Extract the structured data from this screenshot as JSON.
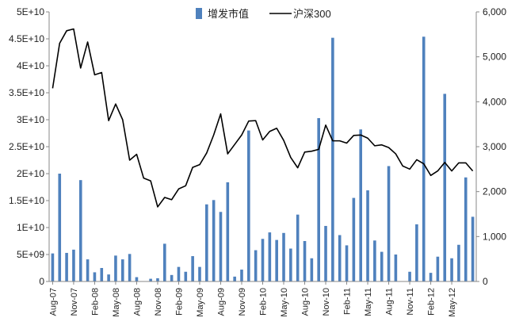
{
  "chart_data": {
    "type": "bar",
    "series": [
      {
        "name": "增发市值",
        "type": "bar",
        "axis": "left",
        "color": "#4F81BD",
        "values": [
          5200000000.0,
          20000000000.0,
          5300000000.0,
          5900000000.0,
          18800000000.0,
          4100000000.0,
          1700000000.0,
          2500000000.0,
          1300000000.0,
          4800000000.0,
          4100000000.0,
          5100000000.0,
          800000000.0,
          0,
          500000000.0,
          600000000.0,
          7000000000.0,
          1200000000.0,
          2700000000.0,
          1800000000.0,
          4700000000.0,
          2700000000.0,
          14300000000.0,
          15100000000.0,
          12900000000.0,
          18400000000.0,
          900000000.0,
          2200000000.0,
          28000000000.0,
          5800000000.0,
          7900000000.0,
          9100000000.0,
          7700000000.0,
          9000000000.0,
          6100000000.0,
          12400000000.0,
          7500000000.0,
          4300000000.0,
          30300000000.0,
          10300000000.0,
          45200000000.0,
          8600000000.0,
          6700000000.0,
          15500000000.0,
          28200000000.0,
          16900000000.0,
          7600000000.0,
          5500000000.0,
          21400000000.0,
          5000000000.0,
          0,
          1800000000.0,
          10600000000.0,
          45400000000.0,
          1600000000.0,
          4600000000.0,
          34800000000.0,
          4300000000.0,
          6800000000.0,
          19300000000.0,
          12000000000.0
        ]
      },
      {
        "name": "沪深300",
        "type": "line",
        "axis": "right",
        "color": "#000000",
        "values": [
          4300,
          5300,
          5580,
          5620,
          4750,
          5330,
          4600,
          4650,
          3580,
          3950,
          3600,
          2700,
          2830,
          2300,
          2240,
          1660,
          1870,
          1820,
          2060,
          2130,
          2540,
          2600,
          2860,
          3260,
          3730,
          2840,
          3050,
          3260,
          3570,
          3580,
          3150,
          3340,
          3410,
          3140,
          2760,
          2530,
          2880,
          2900,
          2940,
          3480,
          3130,
          3130,
          3080,
          3250,
          3260,
          3190,
          3020,
          3040,
          2980,
          2840,
          2570,
          2500,
          2710,
          2620,
          2360,
          2460,
          2650,
          2460,
          2640,
          2640,
          2460
        ]
      }
    ],
    "x_tick_labels": [
      "Aug-07",
      "Nov-07",
      "Feb-08",
      "May-08",
      "Aug-08",
      "Nov-08",
      "Feb-09",
      "May-09",
      "Aug-09",
      "Nov-09",
      "Feb-10",
      "May-10",
      "Aug-10",
      "Nov-10",
      "Feb-11",
      "May-11",
      "Aug-11",
      "Nov-11",
      "Feb-12",
      "May-12"
    ],
    "y_left": {
      "min": 0,
      "max": 50000000000.0,
      "ticks": [
        0,
        5000000000.0,
        10000000000.0,
        15000000000.0,
        20000000000.0,
        25000000000.0,
        30000000000.0,
        35000000000.0,
        40000000000.0,
        45000000000.0,
        50000000000.0
      ],
      "tick_labels": [
        "0",
        "5E+09",
        "1E+10",
        "1.5E+10",
        "2E+10",
        "2.5E+10",
        "3E+10",
        "3.5E+10",
        "4E+10",
        "4.5E+10",
        "5E+10"
      ]
    },
    "y_right": {
      "min": 0,
      "max": 6000,
      "ticks": [
        0,
        1000,
        2000,
        3000,
        4000,
        5000,
        6000
      ],
      "tick_labels": [
        "0",
        "1,000",
        "2,000",
        "3,000",
        "4,000",
        "5,000",
        "6,000"
      ]
    },
    "legend": {
      "placement": "top-center",
      "items": [
        {
          "label": "增发市值",
          "marker": "bar",
          "color": "#4F81BD"
        },
        {
          "label": "沪深300",
          "marker": "line",
          "color": "#000000"
        }
      ]
    },
    "grid": false
  }
}
